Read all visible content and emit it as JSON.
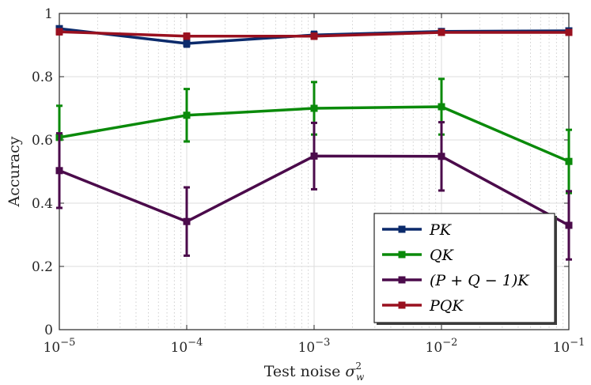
{
  "chart_data": {
    "type": "line",
    "xscale": "log",
    "x": [
      1e-05,
      0.0001,
      0.001,
      0.01,
      0.1
    ],
    "x_tick_labels": [
      {
        "base": "10",
        "exp": "−5"
      },
      {
        "base": "10",
        "exp": "−4"
      },
      {
        "base": "10",
        "exp": "−3"
      },
      {
        "base": "10",
        "exp": "−2"
      },
      {
        "base": "10",
        "exp": "−1"
      }
    ],
    "y_ticks": [
      0,
      0.2,
      0.4,
      0.6,
      0.8,
      1
    ],
    "y_tick_labels": [
      "0",
      "0.2",
      "0.4",
      "0.6",
      "0.8",
      "1"
    ],
    "ylim": [
      0,
      1
    ],
    "xlabel": "Test noise",
    "xlabel_symbol": {
      "base": "σ",
      "sup": "2",
      "sub": "w"
    },
    "ylabel": "Accuracy",
    "grid": true,
    "legend_position": "bottom-right",
    "series": [
      {
        "name": "PK",
        "color": "#0b2a6b",
        "values": [
          0.952,
          0.905,
          0.932,
          0.943,
          0.945
        ],
        "errors": [
          0.006,
          0.01,
          0.01,
          0.006,
          0.006
        ]
      },
      {
        "name": "QK",
        "color": "#0a8a0a",
        "values": [
          0.608,
          0.678,
          0.7,
          0.705,
          0.532
        ],
        "errors": [
          0.1,
          0.083,
          0.083,
          0.088,
          0.1
        ]
      },
      {
        "name": "(P + Q − 1)K",
        "color": "#4b0b4b",
        "values": [
          0.503,
          0.342,
          0.549,
          0.548,
          0.33
        ],
        "errors": [
          0.118,
          0.108,
          0.105,
          0.108,
          0.108
        ]
      },
      {
        "name": "PQK",
        "color": "#99101f",
        "values": [
          0.942,
          0.928,
          0.928,
          0.94,
          0.94
        ],
        "errors": [
          0.008,
          0.008,
          0.008,
          0.006,
          0.006
        ]
      }
    ]
  }
}
